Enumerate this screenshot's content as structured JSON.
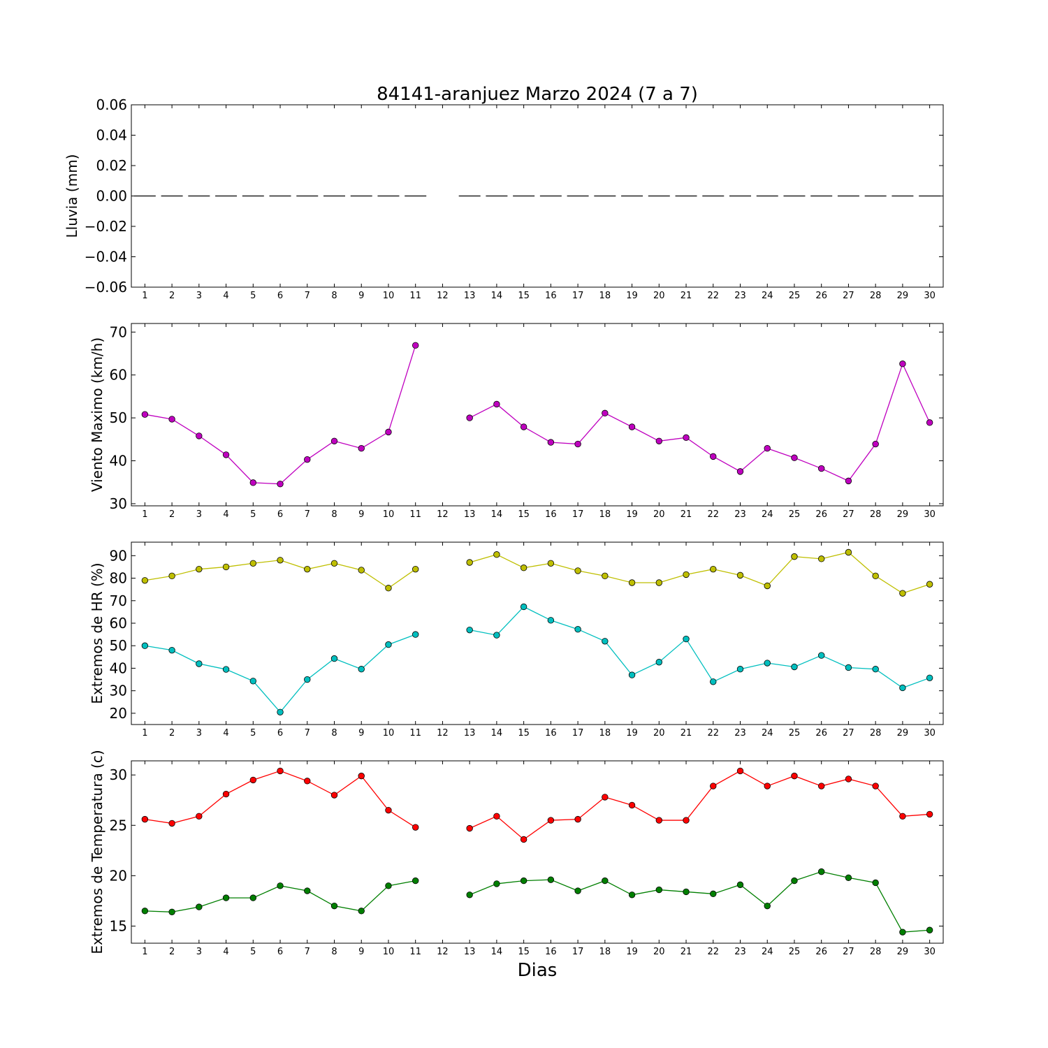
{
  "chart_data": {
    "type": "line",
    "title": "84141-aranjuez Marzo 2024  (7 a 7)",
    "xlabel": "Dias",
    "x": [
      1,
      2,
      3,
      4,
      5,
      6,
      7,
      8,
      9,
      10,
      11,
      12,
      13,
      14,
      15,
      16,
      17,
      18,
      19,
      20,
      21,
      22,
      23,
      24,
      25,
      26,
      27,
      28,
      29,
      30
    ],
    "xlim": [
      0.5,
      30.5
    ],
    "panels": [
      {
        "ylabel": "Lluvia (mm)",
        "ylim": [
          -0.06,
          0.06
        ],
        "yticks": [
          0.06,
          0.04,
          0.02,
          0.0,
          -0.02,
          -0.04,
          -0.06
        ],
        "ytick_labels": [
          "0.06",
          "0.04",
          "0.02",
          "0.00",
          "−0.02",
          "−0.04",
          "−0.06"
        ],
        "series": [
          {
            "style": "bar-dash",
            "color": "#000000",
            "values": [
              0,
              0,
              0,
              0,
              0,
              0,
              0,
              0,
              0,
              0,
              0,
              null,
              0,
              0,
              0,
              0,
              0,
              0,
              0,
              0,
              0,
              0,
              0,
              0,
              0,
              0,
              0,
              0,
              0,
              0
            ]
          }
        ]
      },
      {
        "ylabel": "Viento Maximo (km/h)",
        "ylim": [
          29.5,
          72
        ],
        "yticks": [
          70,
          60,
          50,
          40,
          30
        ],
        "ytick_labels": [
          "70",
          "60",
          "50",
          "40",
          "30"
        ],
        "series": [
          {
            "style": "line-marker",
            "color": "#bf00bf",
            "values": [
              50.8,
              49.7,
              45.8,
              41.4,
              34.9,
              34.6,
              40.3,
              44.6,
              42.9,
              46.7,
              66.9,
              null,
              50.0,
              53.2,
              47.9,
              44.3,
              43.9,
              51.1,
              47.9,
              44.6,
              45.4,
              41.0,
              37.5,
              42.9,
              40.7,
              38.2,
              35.3,
              43.9,
              62.6,
              48.9
            ]
          }
        ]
      },
      {
        "ylabel": "Extremos de HR (%)",
        "ylim": [
          15,
          96
        ],
        "yticks": [
          90,
          80,
          70,
          60,
          50,
          40,
          30,
          20
        ],
        "ytick_labels": [
          "90",
          "80",
          "70",
          "60",
          "50",
          "40",
          "30",
          "20"
        ],
        "series": [
          {
            "style": "line-marker",
            "color": "#bfbf00",
            "values": [
              79,
              81,
              84,
              85,
              86.6,
              88,
              84,
              86.6,
              83.6,
              75.6,
              84,
              null,
              87,
              90.5,
              84.6,
              86.6,
              83.3,
              81,
              78,
              78,
              81.6,
              84,
              81.3,
              76.6,
              89.6,
              88.6,
              91.5,
              81,
              73.3,
              77.3
            ]
          },
          {
            "style": "line-marker",
            "color": "#00bfbf",
            "values": [
              50,
              48,
              42,
              39.5,
              34.3,
              20.5,
              35,
              44.3,
              39.6,
              50.5,
              55,
              null,
              57,
              54.7,
              67.3,
              61.3,
              57.3,
              52,
              37,
              42.7,
              53,
              34,
              39.6,
              42.3,
              40.6,
              45.7,
              40.3,
              39.6,
              31.3,
              35.7
            ]
          }
        ]
      },
      {
        "ylabel": "Extremos de Temperatura (c)",
        "ylim": [
          13.3,
          31.4
        ],
        "yticks": [
          30,
          25,
          20,
          15
        ],
        "ytick_labels": [
          "30",
          "25",
          "20",
          "15"
        ],
        "series": [
          {
            "style": "line-marker",
            "color": "#ff0000",
            "values": [
              25.6,
              25.2,
              25.9,
              28.1,
              29.5,
              30.4,
              29.4,
              28.0,
              29.9,
              26.5,
              24.8,
              null,
              24.7,
              25.9,
              23.6,
              25.5,
              25.6,
              27.8,
              27.0,
              25.5,
              25.5,
              28.9,
              30.4,
              28.9,
              29.9,
              28.9,
              29.6,
              28.9,
              25.9,
              26.1
            ]
          },
          {
            "style": "line-marker",
            "color": "#007f00",
            "values": [
              16.5,
              16.4,
              16.9,
              17.8,
              17.8,
              19.0,
              18.5,
              17.0,
              16.5,
              19.0,
              19.5,
              null,
              18.1,
              19.2,
              19.5,
              19.6,
              18.5,
              19.5,
              18.1,
              18.6,
              18.4,
              18.2,
              19.1,
              17.0,
              19.5,
              20.4,
              19.8,
              19.3,
              14.4,
              14.6
            ]
          }
        ]
      }
    ]
  }
}
